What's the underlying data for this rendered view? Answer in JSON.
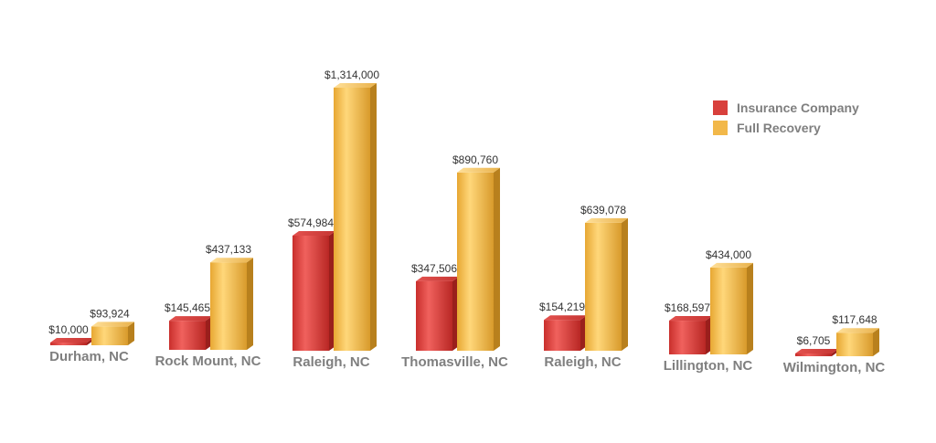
{
  "chart_data": {
    "type": "bar",
    "categories": [
      "Durham, NC",
      "Rock Mount, NC",
      "Raleigh, NC",
      "Thomasville, NC",
      "Raleigh, NC",
      "Lillington, NC",
      "Wilmington, NC"
    ],
    "series": [
      {
        "name": "Insurance Company",
        "values": [
          10000,
          145465,
          574984,
          347506,
          154219,
          168597,
          6705
        ],
        "labels": [
          "$10,000",
          "$145,465",
          "$574,984",
          "$347,506",
          "$154,219",
          "$168,597",
          "$6,705"
        ],
        "color": "#d8403c"
      },
      {
        "name": "Full Recovery",
        "values": [
          93924,
          437133,
          1314000,
          890760,
          639078,
          434000,
          117648
        ],
        "labels": [
          "$93,924",
          "$437,133",
          "$1,314,000",
          "$890,760",
          "$639,078",
          "$434,000",
          "$117,648"
        ],
        "color": "#f2b84a"
      }
    ],
    "ylim": [
      0,
      1314000
    ],
    "grid": false,
    "legend_position": "top-right",
    "style": "3d-columns"
  }
}
